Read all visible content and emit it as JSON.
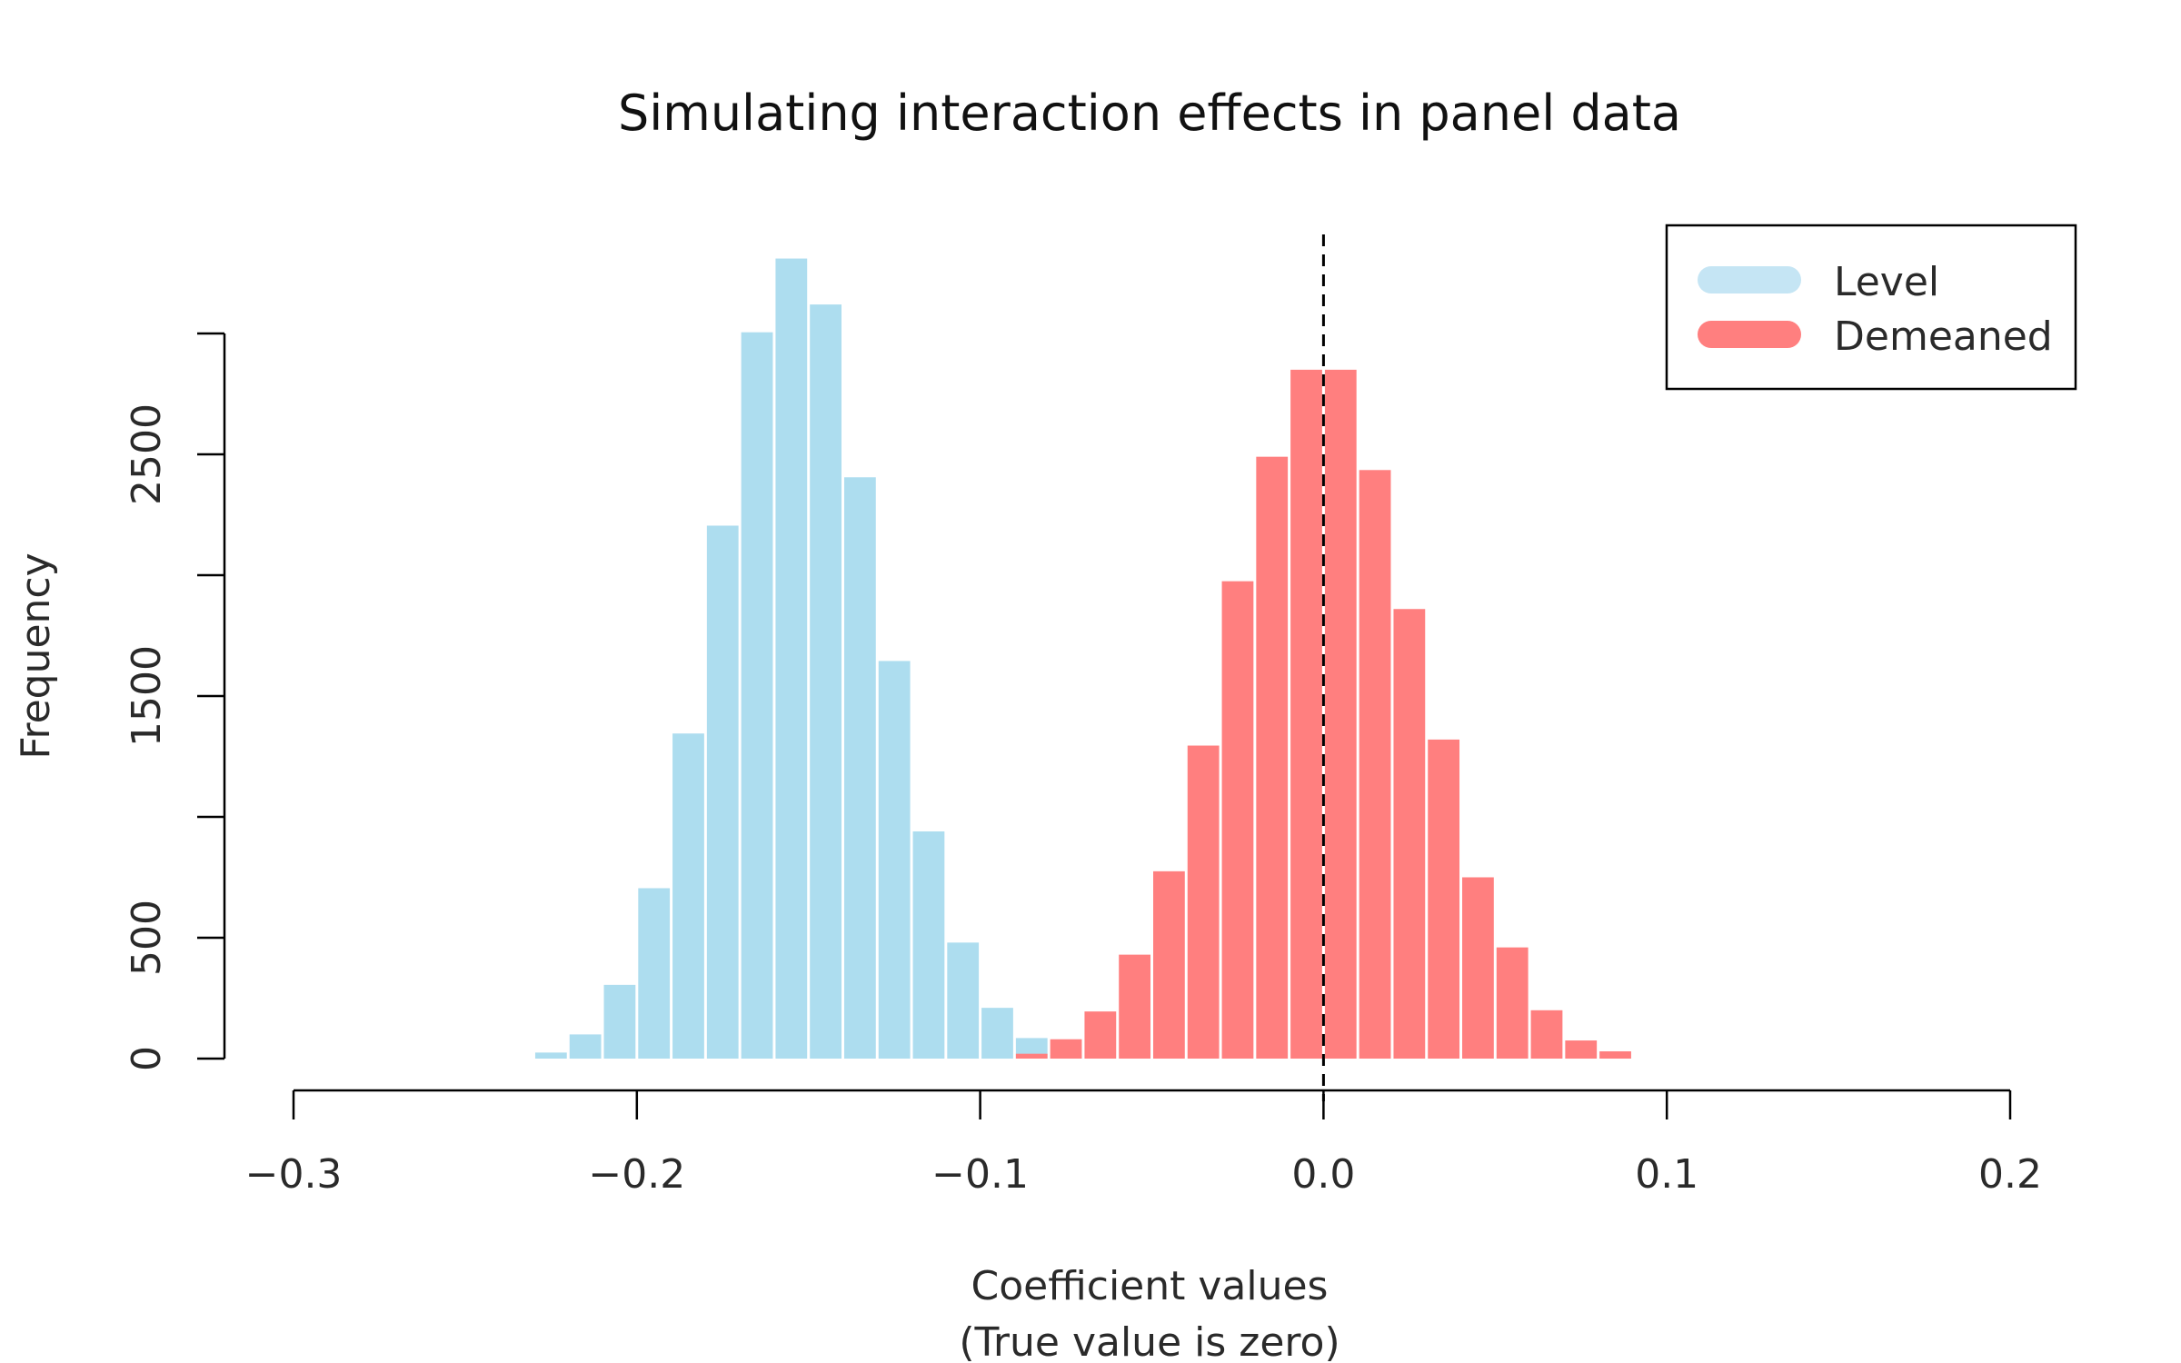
{
  "chart_data": {
    "type": "bar",
    "title": "Simulating interaction effects in panel data",
    "xlabel": "Coefficient values",
    "xlabel_note": "(True value is zero)",
    "ylabel": "Frequency",
    "xlim": [
      -0.3,
      0.2
    ],
    "ylim": [
      0,
      3000
    ],
    "x_ticks": [
      -0.3,
      -0.2,
      -0.1,
      0.0,
      0.1,
      0.2
    ],
    "x_tick_labels": [
      "−0.3",
      "−0.2",
      "−0.1",
      "0.0",
      "0.1",
      "0.2"
    ],
    "y_ticks": [
      0,
      500,
      1000,
      1500,
      2000,
      2500,
      3000
    ],
    "y_tick_labels": [
      "0",
      "500",
      "",
      "1500",
      "",
      "2500",
      ""
    ],
    "reference_line": {
      "x": 0.0,
      "style": "dashed"
    },
    "grid": false,
    "legend_position": "top-right",
    "bin_width": 0.01,
    "series": [
      {
        "name": "Level",
        "color": "#ADDDEF",
        "legend_color": "#C5E5F4",
        "bin_starts": [
          -0.23,
          -0.22,
          -0.21,
          -0.2,
          -0.19,
          -0.18,
          -0.17,
          -0.16,
          -0.15,
          -0.14,
          -0.13,
          -0.12,
          -0.11,
          -0.1,
          -0.09,
          -0.08
        ],
        "values": [
          25,
          100,
          305,
          705,
          1345,
          2205,
          3005,
          3310,
          3120,
          2405,
          1645,
          940,
          480,
          210,
          85,
          15
        ]
      },
      {
        "name": "Demeaned",
        "color": "#FF7F7F",
        "legend_color": "#FF7F7F",
        "bin_starts": [
          -0.09,
          -0.08,
          -0.07,
          -0.06,
          -0.05,
          -0.04,
          -0.03,
          -0.02,
          -0.01,
          0.0,
          0.01,
          0.02,
          0.03,
          0.04,
          0.05,
          0.06,
          0.07,
          0.08
        ],
        "values": [
          20,
          80,
          195,
          430,
          775,
          1295,
          1975,
          2490,
          2850,
          2850,
          2435,
          1860,
          1320,
          750,
          460,
          200,
          75,
          30
        ]
      }
    ]
  }
}
